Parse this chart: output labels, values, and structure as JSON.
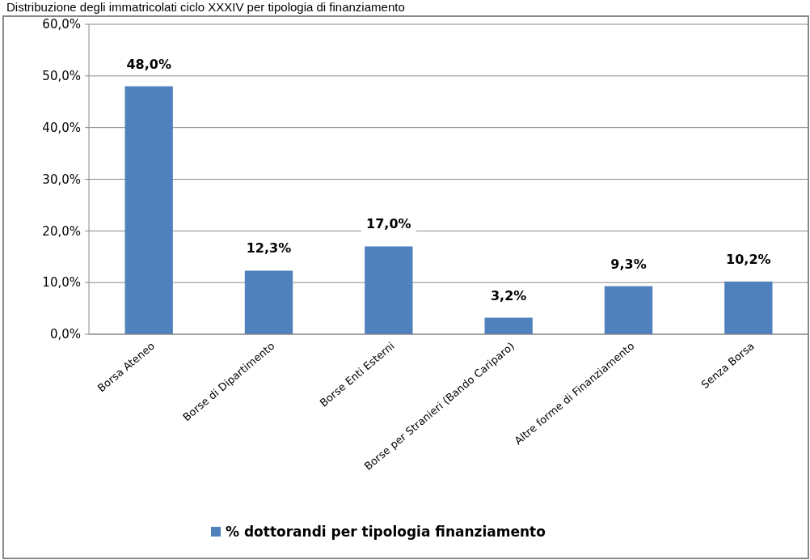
{
  "chart_data": {
    "type": "bar",
    "title": "Distribuzione degli immatricolati ciclo XXXIV per tipologia di finanziamento",
    "categories": [
      "Borsa Ateneo",
      "Borse di Dipartimento",
      "Borse Enti Esterni",
      "Borse per Stranieri (Bando Cariparo)",
      "Altre forme di Finanziamento",
      "Senza Borsa"
    ],
    "series": [
      {
        "name": "% dottorandi per tipologia finanziamento",
        "color": "#4f81bd",
        "values": [
          48.0,
          12.3,
          17.0,
          3.2,
          9.3,
          10.2
        ],
        "value_labels": [
          "48,0%",
          "12,3%",
          "17,0%",
          "3,2%",
          "9,3%",
          "10,2%"
        ]
      }
    ],
    "ylim": [
      0,
      60
    ],
    "yticks": [
      {
        "value": 0,
        "label": "0,0%"
      },
      {
        "value": 10,
        "label": "10,0%"
      },
      {
        "value": 20,
        "label": "20,0%"
      },
      {
        "value": 30,
        "label": "30,0%"
      },
      {
        "value": 40,
        "label": "40,0%"
      },
      {
        "value": 50,
        "label": "50,0%"
      },
      {
        "value": 60,
        "label": "60,0%"
      }
    ],
    "grid": "y",
    "legend": "bottom"
  }
}
